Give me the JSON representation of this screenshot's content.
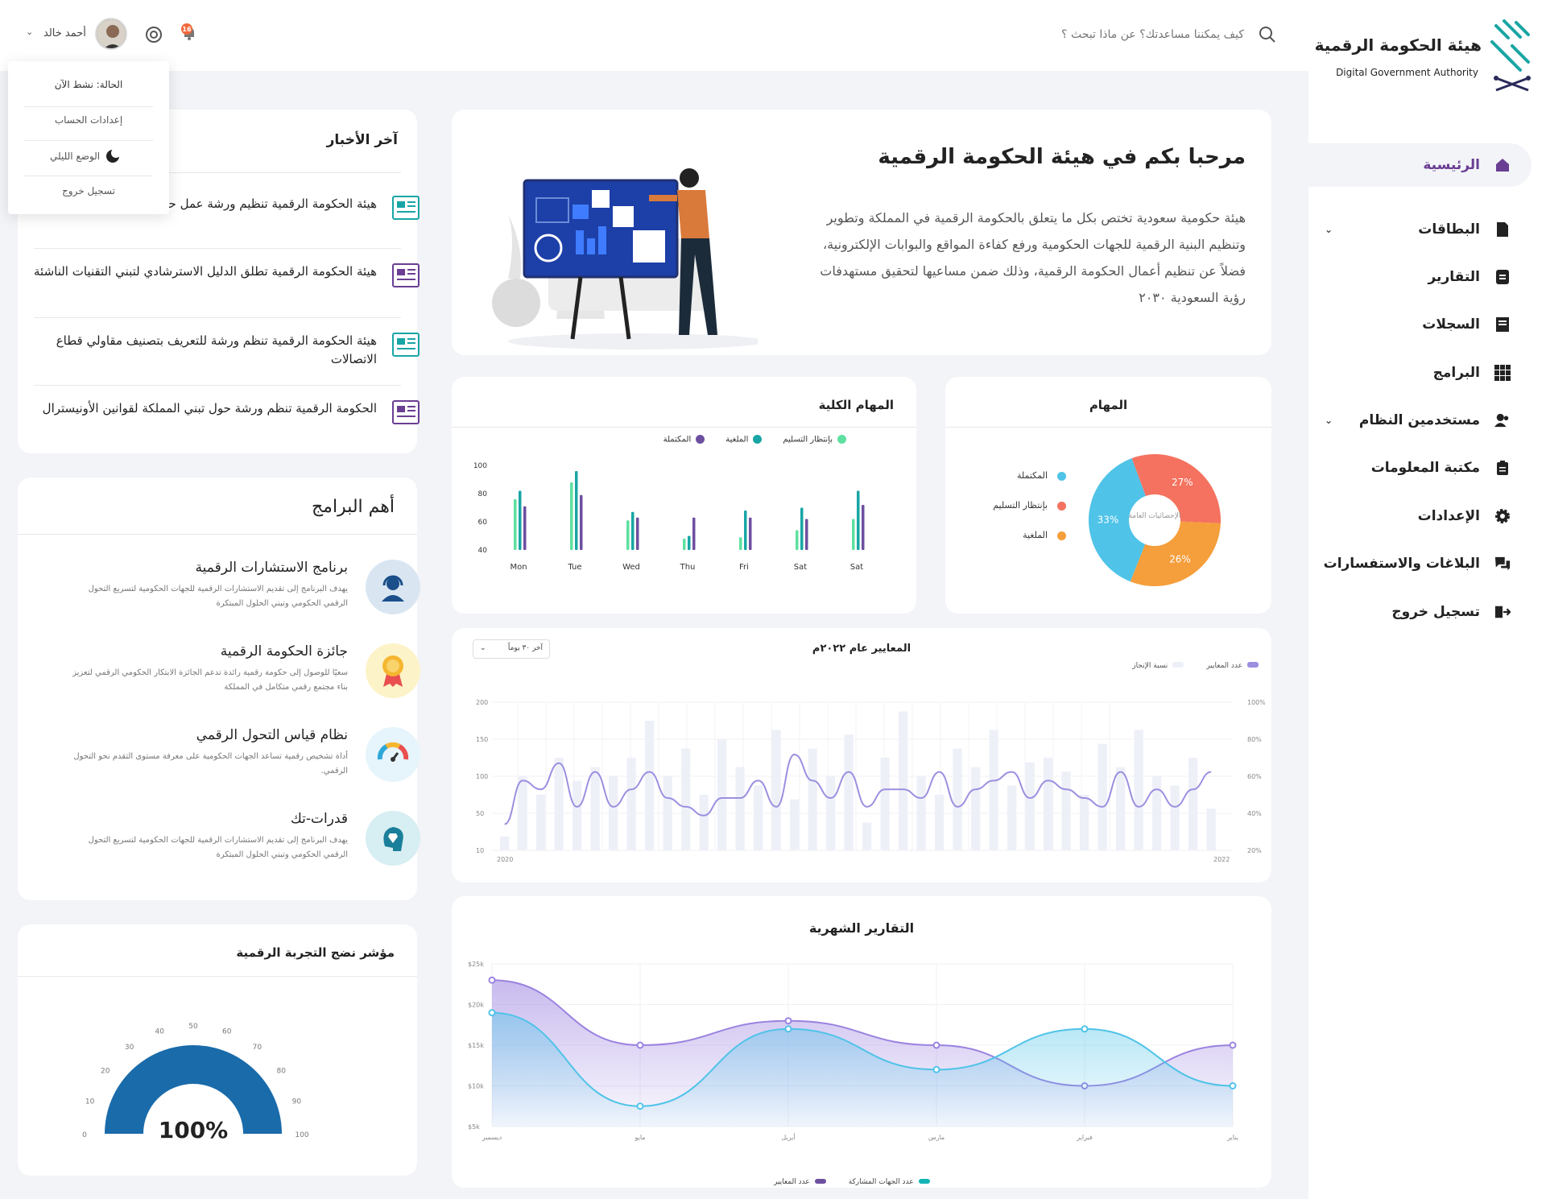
{
  "brand": {
    "name_ar": "هيئة الحكومة الرقمية",
    "name_en": "Digital Government Authority",
    "color": "#6a3e93",
    "teal": "#13a3a3"
  },
  "search": {
    "placeholder": "كيف يمكننا مساعدتك؟ عن ماذا تبحث ؟"
  },
  "user": {
    "name": "أحمد خالد",
    "notifications": "16"
  },
  "user_menu": {
    "status": "الحالة: نشط الآن",
    "settings": "إعدادات الحساب",
    "dark_mode": "الوضع الليلي",
    "logout": "تسجيل خروج"
  },
  "sidebar": {
    "items": [
      {
        "label": "الرئيسية",
        "icon": "home-icon"
      },
      {
        "label": "البطاقات",
        "icon": "document-icon"
      },
      {
        "label": "التقارير",
        "icon": "report-icon"
      },
      {
        "label": "السجلات",
        "icon": "records-icon"
      },
      {
        "label": "البرامج",
        "icon": "grid-icon"
      },
      {
        "label": "مستخدمين النظام",
        "icon": "users-icon"
      },
      {
        "label": "مكتبة المعلومات",
        "icon": "clipboard-icon"
      },
      {
        "label": "الإعدادات",
        "icon": "gear-icon"
      },
      {
        "label": "البلاغات والاستفسارات",
        "icon": "chat-icon"
      },
      {
        "label": "تسجيل خروج",
        "icon": "logout-icon"
      }
    ]
  },
  "welcome": {
    "title": "مرحبا بكم في هيئة الحكومة الرقمية",
    "body": "هيئة حكومية سعودية تختص بكل ما يتعلق بالحكومة الرقمية في المملكة وتطوير وتنظيم البنية الرقمية للجهات الحكومية ورفع كفاءة المواقع والبوابات الإلكترونية، فضلاً عن تنظيم أعمال الحكومة الرقمية، وذلك ضمن مساعيها لتحقيق مستهدفات رؤية السعودية ٢٠٣٠"
  },
  "news": {
    "title": "آخر الأخبار",
    "items": [
      "هيئة الحكومة الرقمية تنظيم ورشة عمل حول تبني البرمجيات",
      "هيئة الحكومة الرقمية تطلق الدليل الاسترشادي لتبني التقنيات الناشئة",
      "هيئة الحكومة الرقمية تنظم ورشة للتعريف بتصنيف مقاولي قطاع الاتصالات",
      "الحكومة الرقمية تنظم ورشة حول تبني المملكة لقوانين الأونيسترال"
    ]
  },
  "programs": {
    "title": "أهم البرامج",
    "items": [
      {
        "title": "برنامج الاستشارات الرقمية",
        "desc": "يهدف البرنامج إلى تقديم الاستشارات الرقمية للجهات الحكومية لتسريع التحول الرقمي الحكومي وتبني الحلول المبتكرة",
        "icon": "headset-icon"
      },
      {
        "title": "جائزة الحكومة الرقمية",
        "desc": "سعيًا للوصول إلى حكومة رقمية رائدة تدعم الجائزة الابتكار الحكومي الرقمي لتعزيز بناء مجتمع رقمي متكامل في المملكة",
        "icon": "medal-icon"
      },
      {
        "title": "نظام قياس التحول الرقمي",
        "desc": "أداة تشخيص رقمية تساعد الجهات الحكومية على معرفة مستوى التقدم نحو التحول الرقمي.",
        "icon": "gauge-icon"
      },
      {
        "title": "قدرات-تك",
        "desc": "يهدف البرنامج إلى تقديم الاستشارات الرقمية للجهات الحكومية لتسريع التحول الرقمي الحكومي وتبني الحلول المبتكرة",
        "icon": "brain-icon"
      }
    ]
  },
  "gauge": {
    "title": "مؤشر نضج التجربة الرقمية",
    "value_label": "100%",
    "value": 100,
    "ticks": [
      "0",
      "10",
      "20",
      "30",
      "40",
      "50",
      "60",
      "70",
      "80",
      "90",
      "100"
    ]
  },
  "tasks_pie": {
    "title": "المهام",
    "center_label": "الإحصائيات العامة",
    "legend": [
      "المكتملة",
      "بإنتظار التسليم",
      "الملغية"
    ]
  },
  "total_tasks": {
    "title": "المهام الكلية",
    "legend": [
      "بإنتظار التسليم",
      "الملغية",
      "المكتملة"
    ]
  },
  "standards": {
    "title": "المعايير عام ٢٠٢٢م",
    "dropdown": "آخر ٣٠ يوماً",
    "legend": [
      "عدد المعايير",
      "نسبة الإنجاز"
    ],
    "y_left": [
      "200",
      "150",
      "100",
      "50",
      "10"
    ],
    "y_right": [
      "100%",
      "80%",
      "60%",
      "40%",
      "20%"
    ],
    "x": [
      "2020",
      "2022"
    ]
  },
  "monthly": {
    "title": "التقارير الشهرية",
    "legend": [
      "عدد الجهات المشاركة",
      "عدد المعايير"
    ]
  },
  "chart_data": [
    {
      "type": "pie",
      "title": "المهام",
      "categories": [
        "المكتملة",
        "بإنتظار التسليم",
        "الملغية"
      ],
      "values": [
        33,
        27,
        26
      ],
      "value_labels": [
        "33%",
        "27%",
        "26%"
      ],
      "colors": [
        "#4fc3e8",
        "#f4725f",
        "#f59e3c"
      ]
    },
    {
      "type": "bar",
      "title": "المهام الكلية",
      "categories": [
        "Mon",
        "Tue",
        "Wed",
        "Thu",
        "Fri",
        "Sat",
        "Sat"
      ],
      "ylim": [
        40,
        100
      ],
      "yticks": [
        "100",
        "80",
        "60",
        "40"
      ],
      "series": [
        {
          "name": "بإنتظار التسليم",
          "color": "#5ee0a0",
          "values": [
            76,
            88,
            61,
            48,
            49,
            54,
            62
          ]
        },
        {
          "name": "الملغية",
          "color": "#19a5a5",
          "values": [
            82,
            96,
            67,
            50,
            68,
            70,
            82
          ]
        },
        {
          "name": "المكتملة",
          "color": "#6d4fa0",
          "values": [
            71,
            79,
            63,
            63,
            63,
            62,
            72
          ]
        }
      ]
    },
    {
      "type": "bar",
      "title": "المعايير عام ٢٠٢٢م",
      "series": [
        {
          "name": "عدد المعايير",
          "color": "#eef0f8",
          "values": [
            15,
            80,
            60,
            100,
            75,
            90,
            80,
            100,
            140,
            80,
            110,
            60,
            120,
            90,
            70,
            130,
            55,
            110,
            80,
            125,
            30,
            100,
            150,
            80,
            60,
            110,
            90,
            130,
            70,
            95,
            100,
            85,
            60,
            115,
            90,
            130,
            80,
            70,
            100,
            45
          ]
        },
        {
          "name": "نسبة الإنجاز",
          "color": "#9b8fe0",
          "values": [
            30,
            55,
            50,
            65,
            40,
            60,
            40,
            50,
            60,
            45,
            40,
            35,
            45,
            45,
            55,
            40,
            70,
            55,
            45,
            60,
            40,
            50,
            50,
            45,
            60,
            40,
            50,
            55,
            60,
            45,
            55,
            50,
            45,
            40,
            60,
            40,
            50,
            40,
            50,
            60
          ]
        }
      ],
      "ylim": [
        10,
        200
      ]
    },
    {
      "type": "area",
      "title": "التقارير الشهرية",
      "categories": [
        "ديسمبر",
        "مايو",
        "أبريل",
        "مارس",
        "فبراير",
        "يناير"
      ],
      "yticks": [
        "$25k",
        "$20k",
        "$15k",
        "$10k",
        "$5k"
      ],
      "ylim": [
        5,
        25
      ],
      "series": [
        {
          "name": "عدد الجهات المشاركة",
          "color": "#4fc3e8",
          "values": [
            19,
            7.5,
            17,
            12,
            17,
            10
          ]
        },
        {
          "name": "عدد المعايير",
          "color": "#9b82e0",
          "values": [
            23,
            15,
            18,
            15,
            10,
            15
          ]
        }
      ]
    }
  ]
}
